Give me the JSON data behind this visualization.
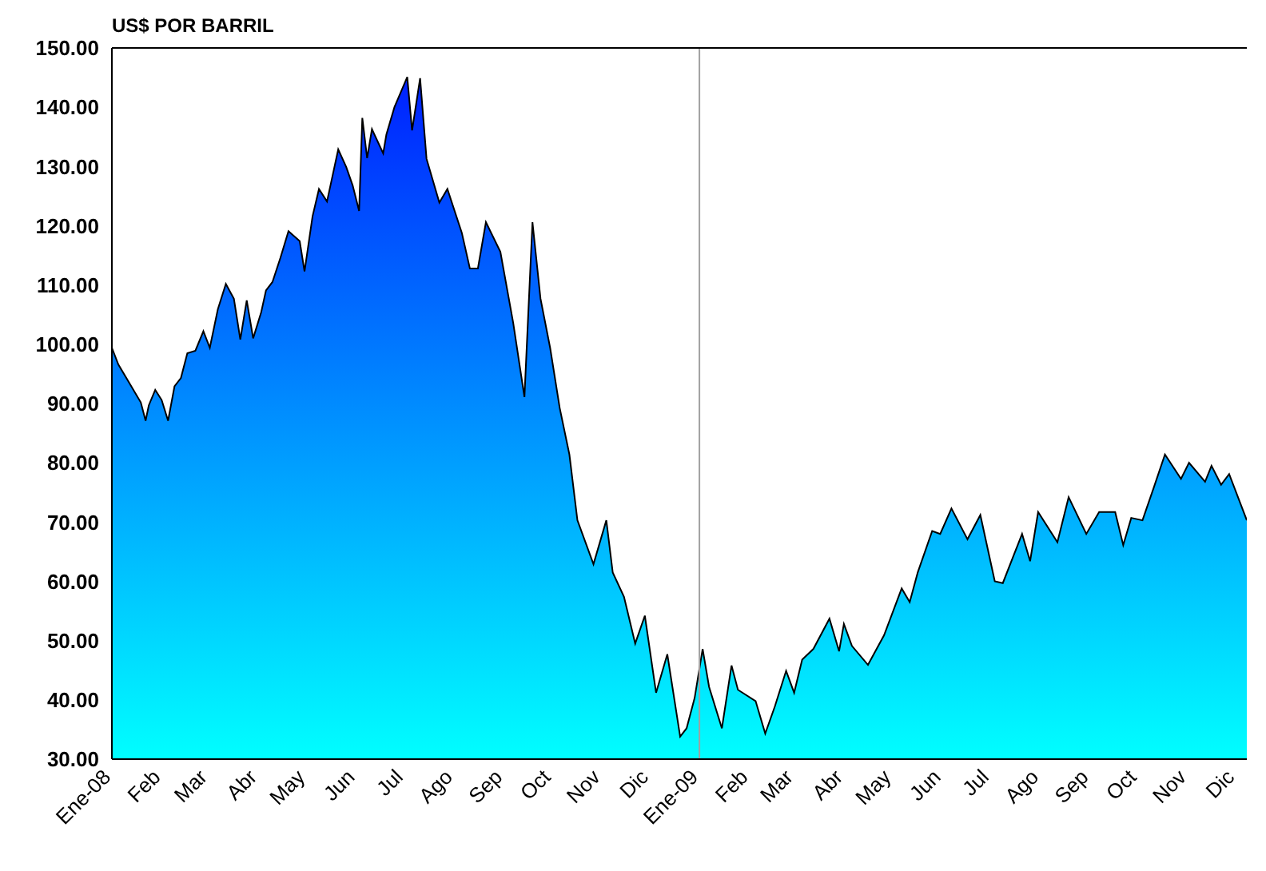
{
  "chart_data": {
    "type": "area",
    "ylabel": "US$ POR BARRIL",
    "xlim": [
      "2008-01-01",
      "2009-12-08"
    ],
    "xticks": [
      {
        "value": "2008-01-01",
        "label": "Ene-08"
      },
      {
        "value": "2008-02-01",
        "label": "Feb"
      },
      {
        "value": "2008-03-01",
        "label": "Mar"
      },
      {
        "value": "2008-04-01",
        "label": "Abr"
      },
      {
        "value": "2008-05-01",
        "label": "May"
      },
      {
        "value": "2008-06-01",
        "label": "Jun"
      },
      {
        "value": "2008-07-01",
        "label": "Jul"
      },
      {
        "value": "2008-08-01",
        "label": "Ago"
      },
      {
        "value": "2008-09-01",
        "label": "Sep"
      },
      {
        "value": "2008-10-01",
        "label": "Oct"
      },
      {
        "value": "2008-11-01",
        "label": "Nov"
      },
      {
        "value": "2008-12-01",
        "label": "Dic"
      },
      {
        "value": "2009-01-01",
        "label": "Ene-09"
      },
      {
        "value": "2009-02-01",
        "label": "Feb"
      },
      {
        "value": "2009-03-01",
        "label": "Mar"
      },
      {
        "value": "2009-04-01",
        "label": "Abr"
      },
      {
        "value": "2009-05-01",
        "label": "May"
      },
      {
        "value": "2009-06-01",
        "label": "Jun"
      },
      {
        "value": "2009-07-01",
        "label": "Jul"
      },
      {
        "value": "2009-08-01",
        "label": "Ago"
      },
      {
        "value": "2009-09-01",
        "label": "Sep"
      },
      {
        "value": "2009-10-01",
        "label": "Oct"
      },
      {
        "value": "2009-11-01",
        "label": "Nov"
      },
      {
        "value": "2009-12-01",
        "label": "Dic"
      }
    ],
    "ylim": [
      30,
      150
    ],
    "yticks": [
      {
        "value": 30,
        "label": "30.00"
      },
      {
        "value": 40,
        "label": "40.00"
      },
      {
        "value": 50,
        "label": "50.00"
      },
      {
        "value": 60,
        "label": "60.00"
      },
      {
        "value": 70,
        "label": "70.00"
      },
      {
        "value": 80,
        "label": "80.00"
      },
      {
        "value": 90,
        "label": "90.00"
      },
      {
        "value": 100,
        "label": "100.00"
      },
      {
        "value": 110,
        "label": "110.00"
      },
      {
        "value": 120,
        "label": "120.00"
      },
      {
        "value": 130,
        "label": "130.00"
      },
      {
        "value": 140,
        "label": "140.00"
      },
      {
        "value": 150,
        "label": "150.00"
      }
    ],
    "grid": false,
    "legend": false,
    "ref_lines": [
      {
        "axis": "x",
        "value": "2009-01-01",
        "label": null,
        "color": "#a0a0a0"
      }
    ],
    "x": [
      "2008-01-01",
      "2008-01-05",
      "2008-01-12",
      "2008-01-19",
      "2008-01-22",
      "2008-01-24",
      "2008-01-28",
      "2008-02-01",
      "2008-02-05",
      "2008-02-09",
      "2008-02-13",
      "2008-02-17",
      "2008-02-22",
      "2008-02-27",
      "2008-03-02",
      "2008-03-07",
      "2008-03-12",
      "2008-03-17",
      "2008-03-21",
      "2008-03-25",
      "2008-03-29",
      "2008-04-03",
      "2008-04-06",
      "2008-04-10",
      "2008-04-15",
      "2008-04-20",
      "2008-04-27",
      "2008-04-30",
      "2008-05-05",
      "2008-05-09",
      "2008-05-14",
      "2008-05-21",
      "2008-05-26",
      "2008-05-30",
      "2008-06-03",
      "2008-06-05",
      "2008-06-08",
      "2008-06-11",
      "2008-06-18",
      "2008-06-20",
      "2008-06-25",
      "2008-07-03",
      "2008-07-06",
      "2008-07-11",
      "2008-07-15",
      "2008-07-23",
      "2008-07-28",
      "2008-08-06",
      "2008-08-11",
      "2008-08-16",
      "2008-08-21",
      "2008-08-30",
      "2008-09-07",
      "2008-09-14",
      "2008-09-19",
      "2008-09-24",
      "2008-09-30",
      "2008-10-06",
      "2008-10-12",
      "2008-10-17",
      "2008-10-27",
      "2008-11-04",
      "2008-11-08",
      "2008-11-15",
      "2008-11-22",
      "2008-11-28",
      "2008-12-05",
      "2008-12-12",
      "2008-12-20",
      "2008-12-24",
      "2008-12-29",
      "2009-01-03",
      "2009-01-07",
      "2009-01-15",
      "2009-01-21",
      "2009-01-25",
      "2009-02-05",
      "2009-02-11",
      "2009-02-17",
      "2009-02-24",
      "2009-03-01",
      "2009-03-06",
      "2009-03-13",
      "2009-03-23",
      "2009-03-29",
      "2009-04-01",
      "2009-04-06",
      "2009-04-16",
      "2009-04-26",
      "2009-05-07",
      "2009-05-12",
      "2009-05-17",
      "2009-05-26",
      "2009-05-31",
      "2009-06-07",
      "2009-06-17",
      "2009-06-25",
      "2009-07-04",
      "2009-07-09",
      "2009-07-21",
      "2009-07-26",
      "2009-07-31",
      "2009-08-12",
      "2009-08-19",
      "2009-08-30",
      "2009-09-07",
      "2009-09-17",
      "2009-09-22",
      "2009-09-27",
      "2009-10-04",
      "2009-10-11",
      "2009-10-18",
      "2009-10-28",
      "2009-11-02",
      "2009-11-12",
      "2009-11-16",
      "2009-11-22",
      "2009-11-27",
      "2009-12-08"
    ],
    "series": [
      {
        "color": "#0020ff",
        "values": [
          99.4,
          96.6,
          93.4,
          90.2,
          87.1,
          89.7,
          92.3,
          90.6,
          87.1,
          92.9,
          94.3,
          98.5,
          98.9,
          102.2,
          99.4,
          105.9,
          110.2,
          107.7,
          100.8,
          107.4,
          101.0,
          105.4,
          109.1,
          110.5,
          114.6,
          119.1,
          117.4,
          112.3,
          121.6,
          126.2,
          124.1,
          132.9,
          129.9,
          126.8,
          122.5,
          138.2,
          131.4,
          136.3,
          132.2,
          135.4,
          140.0,
          145.1,
          136.1,
          144.9,
          131.3,
          123.9,
          126.2,
          118.8,
          112.8,
          112.8,
          120.6,
          115.6,
          103.6,
          91.1,
          120.6,
          107.7,
          99.4,
          89.2,
          81.4,
          70.3,
          62.9,
          70.3,
          61.5,
          57.4,
          49.5,
          54.2,
          41.2,
          47.7,
          33.8,
          35.2,
          40.3,
          48.6,
          42.2,
          35.2,
          45.8,
          41.7,
          39.8,
          34.3,
          38.9,
          44.9,
          41.2,
          46.8,
          48.6,
          53.7,
          48.2,
          52.8,
          49.1,
          45.9,
          50.9,
          58.8,
          56.5,
          61.5,
          68.5,
          68.0,
          72.3,
          67.1,
          71.2,
          60.0,
          59.7,
          68.0,
          63.4,
          71.7,
          66.6,
          74.2,
          68.0,
          71.7,
          71.7,
          66.1,
          70.7,
          70.3,
          75.8,
          81.4,
          77.3,
          80.0,
          76.8,
          79.5,
          76.3,
          78.1,
          70.3
        ]
      }
    ]
  }
}
